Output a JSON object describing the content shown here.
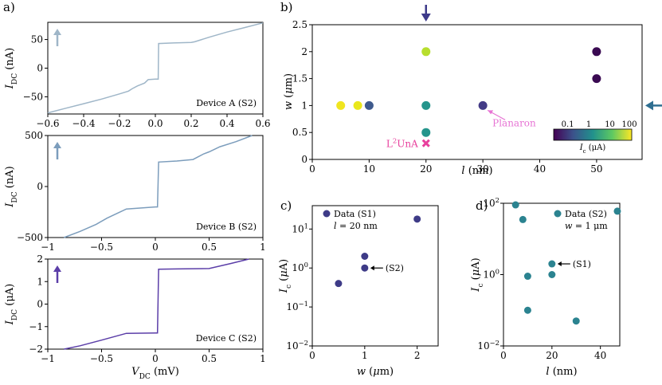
{
  "chart_data": [
    {
      "id": "a1",
      "panel_label": "a)",
      "type": "line",
      "ylabel_main": "I",
      "ylabel_sub": "DC",
      "ylabel_unit": "(nA)",
      "annotation": "Device A (S2)",
      "color": "#9fb6c8",
      "xlim": [
        -0.6,
        0.6
      ],
      "ylim": [
        -80,
        80
      ],
      "xticks": [
        "-0.6",
        "-0.4",
        "-0.2",
        "0.0",
        "0.2",
        "0.4",
        "0.6"
      ],
      "xtick_values": [
        -0.6,
        -0.4,
        -0.2,
        0.0,
        0.2,
        0.4,
        0.6
      ],
      "yticks": [
        "50",
        "0",
        "-50"
      ],
      "ytick_values": [
        50,
        0,
        -50
      ],
      "x": [
        -0.6,
        -0.5,
        -0.4,
        -0.3,
        -0.2,
        -0.15,
        -0.13,
        -0.1,
        -0.06,
        -0.04,
        0.0,
        0.016,
        0.018,
        0.1,
        0.2,
        0.22,
        0.3,
        0.4,
        0.5,
        0.6
      ],
      "y": [
        -78,
        -70,
        -62,
        -54,
        -45,
        -40,
        -36,
        -31,
        -26,
        -20,
        -19,
        -19,
        43,
        44,
        45,
        46,
        54,
        63,
        71,
        79
      ]
    },
    {
      "id": "a2",
      "type": "line",
      "ylabel_main": "I",
      "ylabel_sub": "DC",
      "ylabel_unit": "(nA)",
      "annotation": "Device B (S2)",
      "color": "#7c9dbc",
      "xlim": [
        -1,
        1
      ],
      "ylim": [
        -500,
        500
      ],
      "xticks": [
        "-1",
        "-0.5",
        "0",
        "0.5",
        "1"
      ],
      "xtick_values": [
        -1,
        -0.5,
        0,
        0.5,
        1
      ],
      "yticks": [
        "500",
        "0",
        "-500"
      ],
      "ytick_values": [
        500,
        0,
        -500
      ],
      "x": [
        -0.85,
        -0.7,
        -0.55,
        -0.45,
        -0.35,
        -0.27,
        0.0,
        0.02,
        0.03,
        0.2,
        0.35,
        0.45,
        0.5,
        0.6,
        0.75,
        0.9
      ],
      "y": [
        -500,
        -440,
        -370,
        -310,
        -260,
        -220,
        -200,
        -200,
        240,
        250,
        265,
        320,
        340,
        390,
        440,
        500
      ]
    },
    {
      "id": "a3",
      "type": "line",
      "ylabel_main": "I",
      "ylabel_sub": "DC",
      "ylabel_unit": "(μA)",
      "annotation": "Device C (S2)",
      "color": "#5b3ea8",
      "xlim": [
        -1,
        1
      ],
      "ylim": [
        -2,
        2
      ],
      "xticks": [
        "-1",
        "-0.5",
        "0",
        "0.5",
        "1"
      ],
      "xtick_values": [
        -1,
        -0.5,
        0,
        0.5,
        1
      ],
      "yticks": [
        "2",
        "1",
        "0",
        "-1",
        "-2"
      ],
      "ytick_values": [
        2,
        1,
        0,
        -1,
        -2
      ],
      "xlabel_main": "V",
      "xlabel_sub": "DC",
      "xlabel_unit": "(mV)",
      "x": [
        -0.85,
        -0.7,
        -0.5,
        -0.27,
        0.0,
        0.02,
        0.03,
        0.2,
        0.5,
        0.7,
        0.87
      ],
      "y": [
        -2,
        -1.85,
        -1.6,
        -1.3,
        -1.28,
        -1.28,
        1.55,
        1.56,
        1.58,
        1.8,
        2.0
      ]
    },
    {
      "id": "b",
      "panel_label": "b)",
      "type": "scatter",
      "xlabel": "l (nm)",
      "ylabel": "w (μm)",
      "xlim": [
        0,
        58
      ],
      "ylim": [
        0,
        2.5
      ],
      "xticks": [
        "0",
        "10",
        "20",
        "30",
        "40",
        "50"
      ],
      "xtick_values": [
        0,
        10,
        20,
        30,
        40,
        50
      ],
      "yticks": [
        "0",
        "0.5",
        "1",
        "1.5",
        "2",
        "2.5"
      ],
      "ytick_values": [
        0,
        0.5,
        1,
        1.5,
        2,
        2.5
      ],
      "points": [
        {
          "l": 5,
          "w": 1,
          "color": "#f0e51f"
        },
        {
          "l": 8,
          "w": 1,
          "color": "#e9e71b"
        },
        {
          "l": 10,
          "w": 1,
          "color": "#3e5a8d"
        },
        {
          "l": 20,
          "w": 2,
          "color": "#b7de2e"
        },
        {
          "l": 20,
          "w": 1,
          "color": "#25958c"
        },
        {
          "l": 20,
          "w": 0.5,
          "color": "#25958c"
        },
        {
          "l": 30,
          "w": 1,
          "color": "#433b86"
        },
        {
          "l": 50,
          "w": 2,
          "color": "#3a0a52"
        },
        {
          "l": 50,
          "w": 1.5,
          "color": "#3a0a52"
        }
      ],
      "marker_x": {
        "l": 20,
        "w": 0.3,
        "color": "#e8409d"
      },
      "labels": {
        "planaron": "Planaron",
        "l2una_base": "L",
        "l2una_sup": "2",
        "l2una_rest": "UnA"
      },
      "planaron_color": "#e773d4",
      "l2una_color": "#e8409d",
      "arrow_color": "#3d3a8a",
      "arrow_right_color": "#2f6f91",
      "colorbar": {
        "ticks": [
          "0.1",
          "1",
          "10",
          "100"
        ],
        "label": "I",
        "label_sub": "c",
        "label_unit": "(μA)",
        "colors": [
          "#440154",
          "#3b528b",
          "#21918c",
          "#5ec962",
          "#fde725"
        ]
      }
    },
    {
      "id": "c",
      "panel_label": "c)",
      "type": "scatter",
      "xlabel": "w (μm)",
      "ylabel": "I",
      "ylabel_sub": "c",
      "ylabel_unit": "(μA)",
      "xlim": [
        0,
        2.4
      ],
      "ylog": [
        -2,
        1.6
      ],
      "xticks": [
        "0",
        "1",
        "2"
      ],
      "xtick_values": [
        0,
        1,
        2
      ],
      "yticks": [
        "10",
        "10",
        "10",
        "10"
      ],
      "ytick_sup": [
        "1",
        "0",
        "-1",
        "-2"
      ],
      "ytick_values": [
        1,
        0,
        -1,
        -2
      ],
      "color": "#3e3b87",
      "points": [
        {
          "x": 0.5,
          "y": 0.4
        },
        {
          "x": 1,
          "y": 2
        },
        {
          "x": 1,
          "y": 1
        },
        {
          "x": 2,
          "y": 18
        }
      ],
      "legend": {
        "series": "Data (S1)",
        "note_main": "l",
        "note_rest": " = 20 nm"
      },
      "callout": "(S2)"
    },
    {
      "id": "d",
      "panel_label": "d)",
      "type": "scatter",
      "xlabel": "l (nm)",
      "ylabel": "I",
      "ylabel_sub": "c",
      "ylabel_unit": "(μA)",
      "xlim": [
        0,
        48
      ],
      "ylog": [
        -2,
        2
      ],
      "xticks": [
        "0",
        "20",
        "40"
      ],
      "xtick_values": [
        0,
        20,
        40
      ],
      "yticks": [
        "10",
        "10",
        "10"
      ],
      "ytick_sup": [
        "2",
        "0",
        "-2"
      ],
      "ytick_values": [
        2,
        0,
        -2
      ],
      "color": "#2b8390",
      "points": [
        {
          "x": 5,
          "y": 90
        },
        {
          "x": 8,
          "y": 35
        },
        {
          "x": 10,
          "y": 0.9
        },
        {
          "x": 10,
          "y": 0.1
        },
        {
          "x": 20,
          "y": 2
        },
        {
          "x": 20,
          "y": 1
        },
        {
          "x": 30,
          "y": 0.05
        },
        {
          "x": 47,
          "y": 60
        }
      ],
      "legend": {
        "series": "Data (S2)",
        "note_main": "w",
        "note_rest": " = 1 μm"
      },
      "callout": "(S1)"
    }
  ]
}
